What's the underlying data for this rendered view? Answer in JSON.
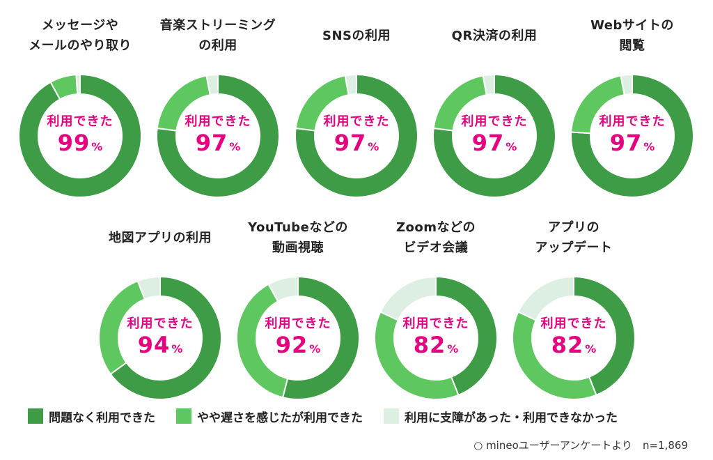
{
  "legend": [
    {
      "label": "問題なく利用できた",
      "color": "#3e9b46"
    },
    {
      "label": "やや遅さを感じたが利用できた",
      "color": "#5fc75f"
    },
    {
      "label": "利用に支障があった・利用できなかった",
      "color": "#dcefe2"
    }
  ],
  "source": "○ mineoユーザーアンケートより　n=1,869",
  "chart_data": [
    {
      "type": "pie",
      "title": "メッセージや\nメールのやり取り",
      "center_label": "利用できた",
      "center_value": "99",
      "center_unit": "%",
      "series": [
        {
          "name": "問題なく利用できた",
          "value": 92
        },
        {
          "name": "やや遅さを感じたが利用できた",
          "value": 7
        },
        {
          "name": "利用に支障があった・利用できなかった",
          "value": 1
        }
      ]
    },
    {
      "type": "pie",
      "title": "音楽ストリーミング\nの利用",
      "center_label": "利用できた",
      "center_value": "97",
      "center_unit": "%",
      "series": [
        {
          "name": "問題なく利用できた",
          "value": 77
        },
        {
          "name": "やや遅さを感じたが利用できた",
          "value": 20
        },
        {
          "name": "利用に支障があった・利用できなかった",
          "value": 3
        }
      ]
    },
    {
      "type": "pie",
      "title": "SNSの利用",
      "center_label": "利用できた",
      "center_value": "97",
      "center_unit": "%",
      "series": [
        {
          "name": "問題なく利用できた",
          "value": 77
        },
        {
          "name": "やや遅さを感じたが利用できた",
          "value": 20
        },
        {
          "name": "利用に支障があった・利用できなかった",
          "value": 3
        }
      ]
    },
    {
      "type": "pie",
      "title": "QR決済の利用",
      "center_label": "利用できた",
      "center_value": "97",
      "center_unit": "%",
      "series": [
        {
          "name": "問題なく利用できた",
          "value": 77
        },
        {
          "name": "やや遅さを感じたが利用できた",
          "value": 20
        },
        {
          "name": "利用に支障があった・利用できなかった",
          "value": 3
        }
      ]
    },
    {
      "type": "pie",
      "title": "Webサイトの\n閲覧",
      "center_label": "利用できた",
      "center_value": "97",
      "center_unit": "%",
      "series": [
        {
          "name": "問題なく利用できた",
          "value": 76
        },
        {
          "name": "やや遅さを感じたが利用できた",
          "value": 21
        },
        {
          "name": "利用に支障があった・利用できなかった",
          "value": 3
        }
      ]
    },
    {
      "type": "pie",
      "title": "地図アプリの利用",
      "center_label": "利用できた",
      "center_value": "94",
      "center_unit": "%",
      "series": [
        {
          "name": "問題なく利用できた",
          "value": 65
        },
        {
          "name": "やや遅さを感じたが利用できた",
          "value": 29
        },
        {
          "name": "利用に支障があった・利用できなかった",
          "value": 6
        }
      ]
    },
    {
      "type": "pie",
      "title": "YouTubeなどの\n動画視聴",
      "center_label": "利用できた",
      "center_value": "92",
      "center_unit": "%",
      "series": [
        {
          "name": "問題なく利用できた",
          "value": 54
        },
        {
          "name": "やや遅さを感じたが利用できた",
          "value": 38
        },
        {
          "name": "利用に支障があった・利用できなかった",
          "value": 8
        }
      ]
    },
    {
      "type": "pie",
      "title": "Zoomなどの\nビデオ会議",
      "center_label": "利用できた",
      "center_value": "82",
      "center_unit": "%",
      "series": [
        {
          "name": "問題なく利用できた",
          "value": 44
        },
        {
          "name": "やや遅さを感じたが利用できた",
          "value": 38
        },
        {
          "name": "利用に支障があった・利用できなかった",
          "value": 18
        }
      ]
    },
    {
      "type": "pie",
      "title": "アプリの\nアップデート",
      "center_label": "利用できた",
      "center_value": "82",
      "center_unit": "%",
      "series": [
        {
          "name": "問題なく利用できた",
          "value": 44
        },
        {
          "name": "やや遅さを感じたが利用できた",
          "value": 38
        },
        {
          "name": "利用に支障があった・利用できなかった",
          "value": 18
        }
      ]
    }
  ]
}
